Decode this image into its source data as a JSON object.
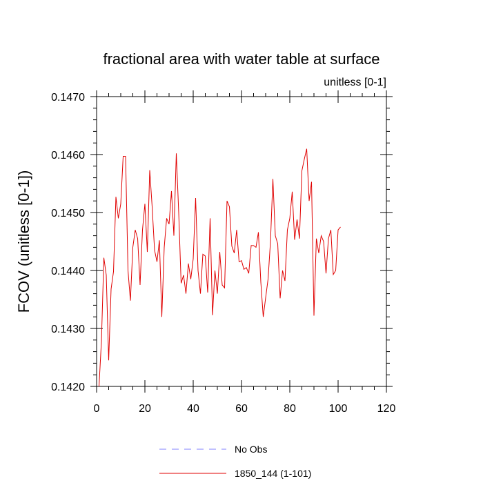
{
  "chart_data": {
    "type": "line",
    "title": "fractional area with water table at surface",
    "units_label": "unitless [0-1]",
    "ylabel": "FCOV  (unitless [0-1])",
    "xlabel": "",
    "xlim": [
      0,
      120
    ],
    "ylim": [
      0.142,
      0.147
    ],
    "x_ticks": [
      0,
      20,
      40,
      60,
      80,
      100,
      120
    ],
    "x_tick_labels": [
      "0",
      "20",
      "40",
      "60",
      "80",
      "100",
      "120"
    ],
    "y_ticks": [
      0.142,
      0.143,
      0.144,
      0.145,
      0.146,
      0.147
    ],
    "y_tick_labels": [
      "0.1420",
      "0.1430",
      "0.1440",
      "0.1450",
      "0.1460",
      "0.1470"
    ],
    "grid": false,
    "legend_placement": "bottom-center",
    "series": [
      {
        "name": "No Obs",
        "color": "#8080ff",
        "dash": "dashed",
        "values": []
      },
      {
        "name": "1850_144 (1-101)",
        "color": "#e00000",
        "dash": "solid",
        "x": [
          1,
          2,
          3,
          4,
          5,
          6,
          7,
          8,
          9,
          10,
          11,
          12,
          13,
          14,
          15,
          16,
          17,
          18,
          19,
          20,
          21,
          22,
          23,
          24,
          25,
          26,
          27,
          28,
          29,
          30,
          31,
          32,
          33,
          34,
          35,
          36,
          37,
          38,
          39,
          40,
          41,
          42,
          43,
          44,
          45,
          46,
          47,
          48,
          49,
          50,
          51,
          52,
          53,
          54,
          55,
          56,
          57,
          58,
          59,
          60,
          61,
          62,
          63,
          64,
          65,
          66,
          67,
          68,
          69,
          70,
          71,
          72,
          73,
          74,
          75,
          76,
          77,
          78,
          79,
          80,
          81,
          82,
          83,
          84,
          85,
          86,
          87,
          88,
          89,
          90,
          91,
          92,
          93,
          94,
          95,
          96,
          97,
          98,
          99,
          100,
          101
        ],
        "values": [
          0.142,
          0.14278,
          0.14422,
          0.14392,
          0.14245,
          0.14368,
          0.14398,
          0.14527,
          0.1449,
          0.14515,
          0.14597,
          0.14597,
          0.144,
          0.14348,
          0.1444,
          0.1447,
          0.14455,
          0.14375,
          0.1447,
          0.14515,
          0.14432,
          0.14573,
          0.1451,
          0.14435,
          0.14415,
          0.14452,
          0.1432,
          0.1444,
          0.1449,
          0.1448,
          0.14537,
          0.1446,
          0.14602,
          0.145,
          0.14378,
          0.14392,
          0.1436,
          0.14412,
          0.14385,
          0.1442,
          0.14525,
          0.144,
          0.1436,
          0.14428,
          0.14425,
          0.14362,
          0.1449,
          0.14323,
          0.144,
          0.1436,
          0.14432,
          0.14375,
          0.1437,
          0.1452,
          0.1451,
          0.14442,
          0.1443,
          0.1447,
          0.14415,
          0.14417,
          0.14402,
          0.14405,
          0.14395,
          0.14443,
          0.14443,
          0.1444,
          0.14466,
          0.1438,
          0.1432,
          0.14353,
          0.14385,
          0.1445,
          0.14558,
          0.1446,
          0.14446,
          0.14352,
          0.144,
          0.14382,
          0.1447,
          0.1449,
          0.14536,
          0.14453,
          0.14488,
          0.14455,
          0.14572,
          0.14592,
          0.1461,
          0.1452,
          0.14553,
          0.14322,
          0.14455,
          0.1443,
          0.1446,
          0.1445,
          0.14395,
          0.14455,
          0.1447,
          0.14393,
          0.144,
          0.1447,
          0.14475
        ]
      }
    ]
  }
}
